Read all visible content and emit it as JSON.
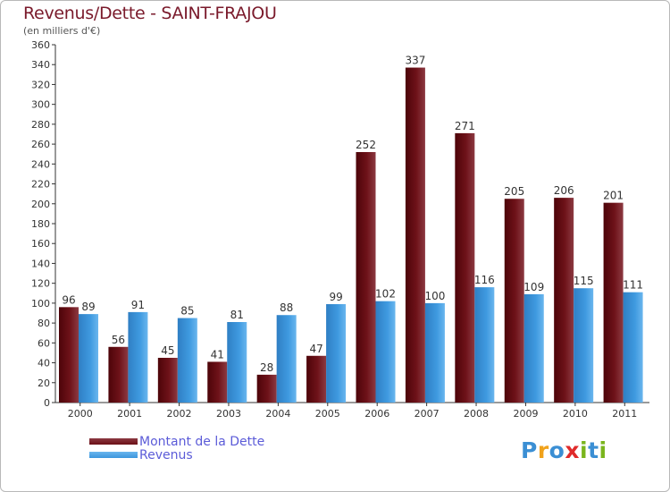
{
  "title": "Revenus/Dette - SAINT-FRAJOU",
  "unit_label": "(en milliers d'€)",
  "legend": {
    "debt": {
      "label": "Montant de la Dette",
      "color": "#6b0e16"
    },
    "revenue": {
      "label": "Revenus",
      "color": "#3c96dc"
    }
  },
  "logo": {
    "text": "Proxiti"
  },
  "chart_data": {
    "type": "bar",
    "categories": [
      "2000",
      "2001",
      "2002",
      "2003",
      "2004",
      "2005",
      "2006",
      "2007",
      "2008",
      "2009",
      "2010",
      "2011"
    ],
    "series": [
      {
        "name": "Montant de la Dette",
        "values": [
          96,
          56,
          45,
          41,
          28,
          47,
          252,
          337,
          271,
          205,
          206,
          201
        ]
      },
      {
        "name": "Revenus",
        "values": [
          89,
          91,
          85,
          81,
          88,
          99,
          102,
          100,
          116,
          109,
          115,
          111
        ]
      }
    ],
    "ylim": [
      0,
      360
    ],
    "ytick_step": 20,
    "grid": false,
    "legend_position": "bottom-left"
  }
}
